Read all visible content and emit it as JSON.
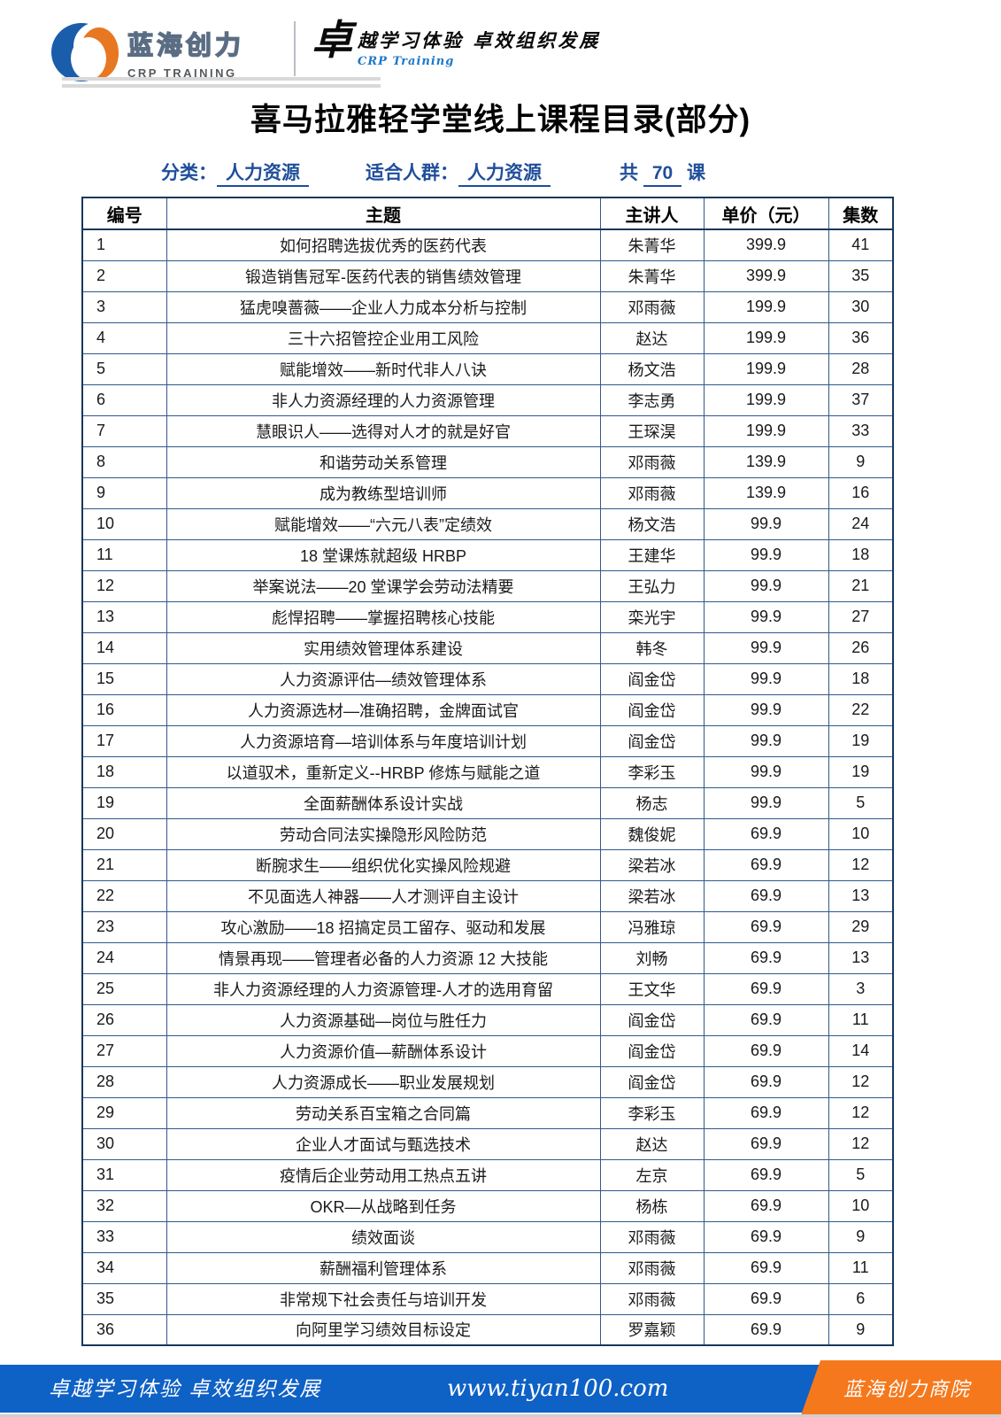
{
  "brand": {
    "logo_icon": "swirl-globe",
    "logo_text": "蓝海创力",
    "logo_subtext": "CRP TRAINING",
    "slogan_big_char": "卓",
    "slogan_rest": "越学习体验 卓效组织发展",
    "slogan_sub": "CRP Training"
  },
  "title": "喜马拉雅轻学堂线上课程目录(部分)",
  "filters": {
    "category_label": "分类：",
    "category_value": "人力资源",
    "audience_label": "适合人群：",
    "audience_value": "人力资源",
    "total_prefix": "共",
    "total_value": "70",
    "total_suffix": "课"
  },
  "table": {
    "headers": [
      "编号",
      "主题",
      "主讲人",
      "单价（元）",
      "集数"
    ],
    "rows": [
      [
        "1",
        "如何招聘选拔优秀的医药代表",
        "朱菁华",
        "399.9",
        "41"
      ],
      [
        "2",
        "锻造销售冠军-医药代表的销售绩效管理",
        "朱菁华",
        "399.9",
        "35"
      ],
      [
        "3",
        "猛虎嗅蔷薇——企业人力成本分析与控制",
        "邓雨薇",
        "199.9",
        "30"
      ],
      [
        "4",
        "三十六招管控企业用工风险",
        "赵达",
        "199.9",
        "36"
      ],
      [
        "5",
        "赋能增效——新时代非人八诀",
        "杨文浩",
        "199.9",
        "28"
      ],
      [
        "6",
        "非人力资源经理的人力资源管理",
        "李志勇",
        "199.9",
        "37"
      ],
      [
        "7",
        "慧眼识人——选得对人才的就是好官",
        "王琛淏",
        "199.9",
        "33"
      ],
      [
        "8",
        "和谐劳动关系管理",
        "邓雨薇",
        "139.9",
        "9"
      ],
      [
        "9",
        "成为教练型培训师",
        "邓雨薇",
        "139.9",
        "16"
      ],
      [
        "10",
        "赋能增效——“六元八表”定绩效",
        "杨文浩",
        "99.9",
        "24"
      ],
      [
        "11",
        "18 堂课炼就超级 HRBP",
        "王建华",
        "99.9",
        "18"
      ],
      [
        "12",
        "举案说法——20 堂课学会劳动法精要",
        "王弘力",
        "99.9",
        "21"
      ],
      [
        "13",
        "彪悍招聘——掌握招聘核心技能",
        "栾光宇",
        "99.9",
        "27"
      ],
      [
        "14",
        "实用绩效管理体系建设",
        "韩冬",
        "99.9",
        "26"
      ],
      [
        "15",
        "人力资源评估—绩效管理体系",
        "阎金岱",
        "99.9",
        "18"
      ],
      [
        "16",
        "人力资源选材—准确招聘，金牌面试官",
        "阎金岱",
        "99.9",
        "22"
      ],
      [
        "17",
        "人力资源培育—培训体系与年度培训计划",
        "阎金岱",
        "99.9",
        "19"
      ],
      [
        "18",
        "以道驭术，重新定义--HRBP 修炼与赋能之道",
        "李彩玉",
        "99.9",
        "19"
      ],
      [
        "19",
        "全面薪酬体系设计实战",
        "杨志",
        "99.9",
        "5"
      ],
      [
        "20",
        "劳动合同法实操隐形风险防范",
        "魏俊妮",
        "69.9",
        "10"
      ],
      [
        "21",
        "断腕求生——组织优化实操风险规避",
        "梁若冰",
        "69.9",
        "12"
      ],
      [
        "22",
        "不见面选人神器——人才测评自主设计",
        "梁若冰",
        "69.9",
        "13"
      ],
      [
        "23",
        "攻心激励——18 招搞定员工留存、驱动和发展",
        "冯雅琼",
        "69.9",
        "29"
      ],
      [
        "24",
        "情景再现——管理者必备的人力资源 12 大技能",
        "刘畅",
        "69.9",
        "13"
      ],
      [
        "25",
        "非人力资源经理的人力资源管理-人才的选用育留",
        "王文华",
        "69.9",
        "3"
      ],
      [
        "26",
        "人力资源基础—岗位与胜任力",
        "阎金岱",
        "69.9",
        "11"
      ],
      [
        "27",
        "人力资源价值—薪酬体系设计",
        "阎金岱",
        "69.9",
        "14"
      ],
      [
        "28",
        "人力资源成长——职业发展规划",
        "阎金岱",
        "69.9",
        "12"
      ],
      [
        "29",
        "劳动关系百宝箱之合同篇",
        "李彩玉",
        "69.9",
        "12"
      ],
      [
        "30",
        "企业人才面试与甄选技术",
        "赵达",
        "69.9",
        "12"
      ],
      [
        "31",
        "疫情后企业劳动用工热点五讲",
        "左京",
        "69.9",
        "5"
      ],
      [
        "32",
        "OKR—从战略到任务",
        "杨栋",
        "69.9",
        "10"
      ],
      [
        "33",
        "绩效面谈",
        "邓雨薇",
        "69.9",
        "9"
      ],
      [
        "34",
        "薪酬福利管理体系",
        "邓雨薇",
        "69.9",
        "11"
      ],
      [
        "35",
        "非常规下社会责任与培训开发",
        "邓雨薇",
        "69.9",
        "6"
      ],
      [
        "36",
        "向阿里学习绩效目标设定",
        "罗嘉颖",
        "69.9",
        "9"
      ]
    ]
  },
  "footer": {
    "left": "卓越学习体验 卓效组织发展",
    "center": "www.tiyan100.com",
    "right": "蓝海创力商院"
  },
  "colors": {
    "footer_blue": "#0e61c5",
    "footer_orange": "#f5781c",
    "filter_blue": "#1f4e9b",
    "table_border": "#17375d",
    "logo_blue": "#1a5dab",
    "logo_orange": "#e87722"
  }
}
